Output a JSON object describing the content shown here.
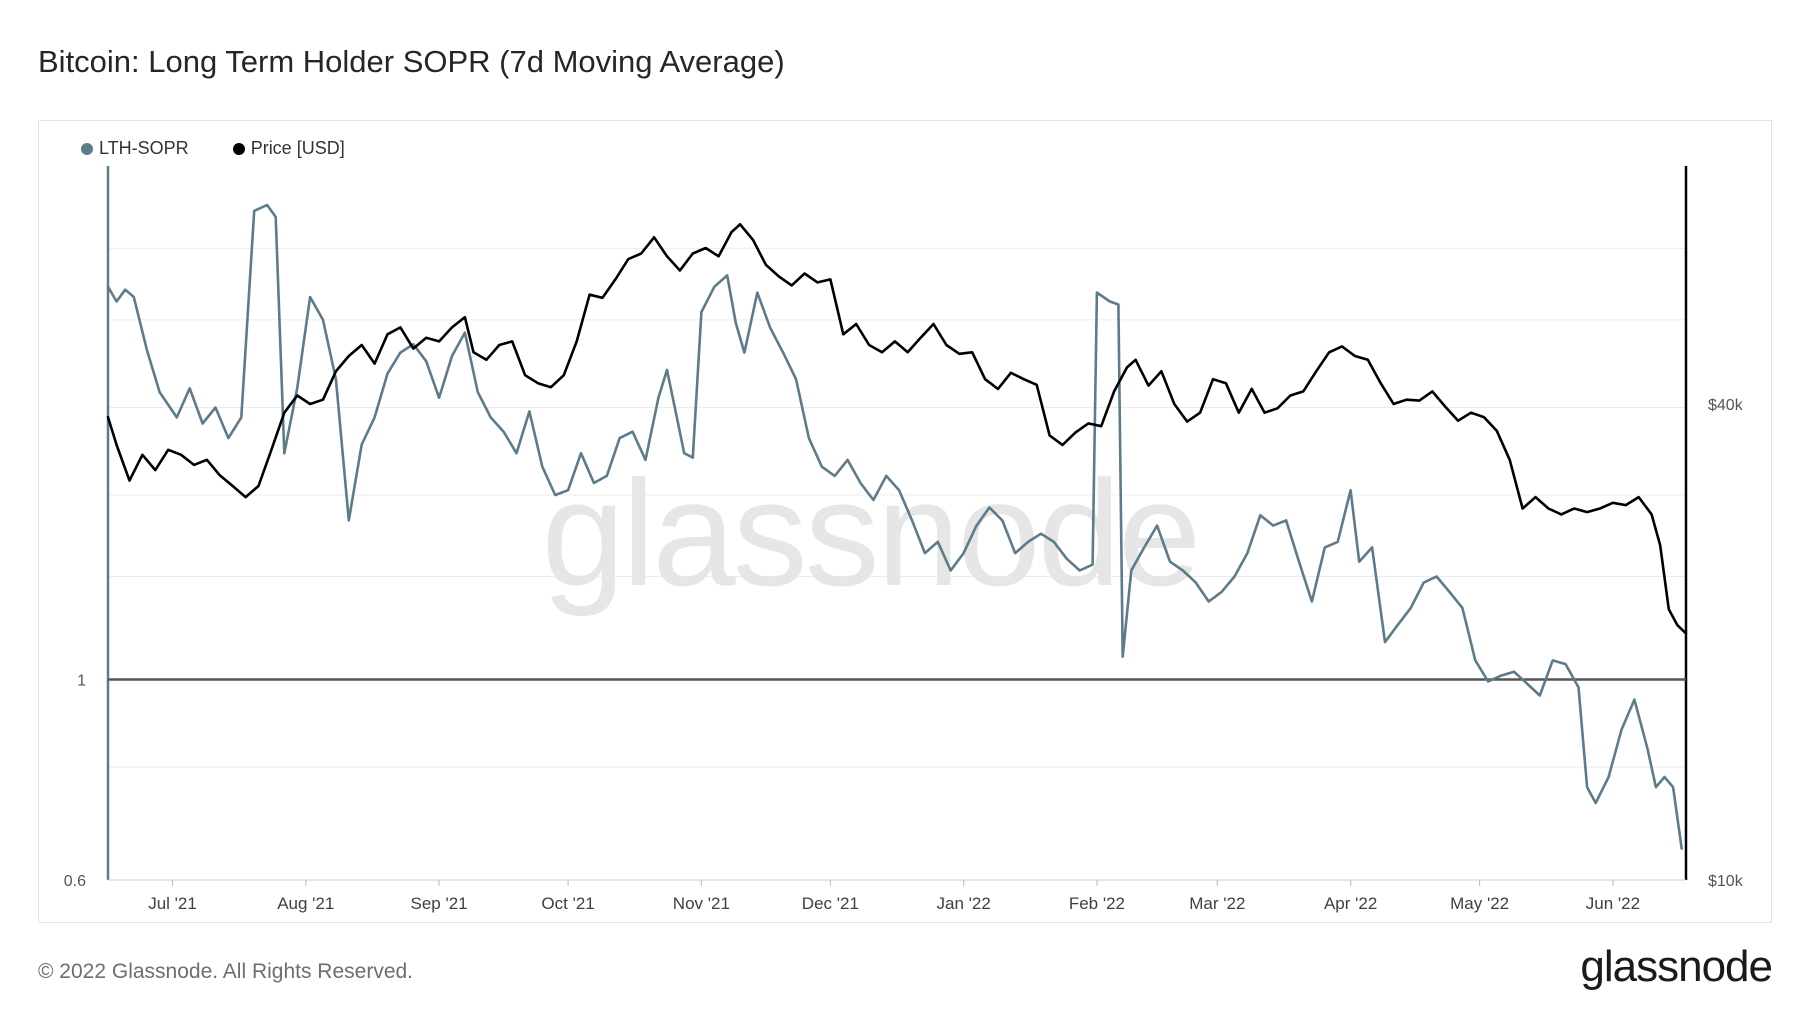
{
  "title": "Bitcoin: Long Term Holder SOPR (7d Moving Average)",
  "footer": "© 2022 Glassnode. All Rights Reserved.",
  "brand": "glassnode",
  "colors": {
    "sopr": "#5e7b8b",
    "price": "#000000",
    "baseline": "#555555",
    "grid": "#ececec"
  },
  "legend": [
    {
      "label": "LTH-SOPR",
      "color": "#5e7b8b"
    },
    {
      "label": "Price [USD]",
      "color": "#000000"
    }
  ],
  "chart_data": {
    "type": "line",
    "title": "Bitcoin: Long Term Holder SOPR (7d Moving Average)",
    "watermark": "glassnode",
    "x_range": [
      "2021-06-16",
      "2022-06-18"
    ],
    "x_ticks": [
      {
        "label": "Jul '21",
        "date": "2021-07-01"
      },
      {
        "label": "Aug '21",
        "date": "2021-08-01"
      },
      {
        "label": "Sep '21",
        "date": "2021-09-01"
      },
      {
        "label": "Oct '21",
        "date": "2021-10-01"
      },
      {
        "label": "Nov '21",
        "date": "2021-11-01"
      },
      {
        "label": "Dec '21",
        "date": "2021-12-01"
      },
      {
        "label": "Jan '22",
        "date": "2022-01-01"
      },
      {
        "label": "Feb '22",
        "date": "2022-02-01"
      },
      {
        "label": "Mar '22",
        "date": "2022-03-01"
      },
      {
        "label": "Apr '22",
        "date": "2022-04-01"
      },
      {
        "label": "May '22",
        "date": "2022-05-01"
      },
      {
        "label": "Jun '22",
        "date": "2022-06-01"
      }
    ],
    "y_left": {
      "scale": "log",
      "min": 0.6,
      "max": 3.7,
      "ticks": [
        {
          "label": "1",
          "value": 1
        },
        {
          "label": "0.6",
          "value": 0.6
        }
      ],
      "reference_line": 1
    },
    "y_right": {
      "scale": "log",
      "min": 10000,
      "max": 80000,
      "ticks": [
        {
          "label": "$40k",
          "value": 40000
        },
        {
          "label": "$10k",
          "value": 10000
        }
      ]
    },
    "series": [
      {
        "name": "LTH-SOPR",
        "axis": "left",
        "points": [
          [
            "2021-06-16",
            2.72
          ],
          [
            "2021-06-18",
            2.62
          ],
          [
            "2021-06-20",
            2.7
          ],
          [
            "2021-06-22",
            2.65
          ],
          [
            "2021-06-25",
            2.32
          ],
          [
            "2021-06-28",
            2.08
          ],
          [
            "2021-07-02",
            1.95
          ],
          [
            "2021-07-05",
            2.1
          ],
          [
            "2021-07-08",
            1.92
          ],
          [
            "2021-07-11",
            2.0
          ],
          [
            "2021-07-14",
            1.85
          ],
          [
            "2021-07-17",
            1.95
          ],
          [
            "2021-07-20",
            3.3
          ],
          [
            "2021-07-23",
            3.35
          ],
          [
            "2021-07-25",
            3.25
          ],
          [
            "2021-07-27",
            1.78
          ],
          [
            "2021-07-30",
            2.1
          ],
          [
            "2021-08-02",
            2.65
          ],
          [
            "2021-08-05",
            2.5
          ],
          [
            "2021-08-08",
            2.15
          ],
          [
            "2021-08-11",
            1.5
          ],
          [
            "2021-08-14",
            1.82
          ],
          [
            "2021-08-17",
            1.95
          ],
          [
            "2021-08-20",
            2.18
          ],
          [
            "2021-08-23",
            2.3
          ],
          [
            "2021-08-26",
            2.35
          ],
          [
            "2021-08-29",
            2.25
          ],
          [
            "2021-09-01",
            2.05
          ],
          [
            "2021-09-04",
            2.28
          ],
          [
            "2021-09-07",
            2.42
          ],
          [
            "2021-09-10",
            2.08
          ],
          [
            "2021-09-13",
            1.95
          ],
          [
            "2021-09-16",
            1.88
          ],
          [
            "2021-09-19",
            1.78
          ],
          [
            "2021-09-22",
            1.98
          ],
          [
            "2021-09-25",
            1.72
          ],
          [
            "2021-09-28",
            1.6
          ],
          [
            "2021-10-01",
            1.62
          ],
          [
            "2021-10-04",
            1.78
          ],
          [
            "2021-10-07",
            1.65
          ],
          [
            "2021-10-10",
            1.68
          ],
          [
            "2021-10-13",
            1.85
          ],
          [
            "2021-10-16",
            1.88
          ],
          [
            "2021-10-19",
            1.75
          ],
          [
            "2021-10-22",
            2.05
          ],
          [
            "2021-10-24",
            2.2
          ],
          [
            "2021-10-26",
            1.98
          ],
          [
            "2021-10-28",
            1.78
          ],
          [
            "2021-10-30",
            1.76
          ],
          [
            "2021-11-01",
            2.55
          ],
          [
            "2021-11-04",
            2.72
          ],
          [
            "2021-11-07",
            2.8
          ],
          [
            "2021-11-09",
            2.48
          ],
          [
            "2021-11-11",
            2.3
          ],
          [
            "2021-11-14",
            2.68
          ],
          [
            "2021-11-17",
            2.45
          ],
          [
            "2021-11-20",
            2.3
          ],
          [
            "2021-11-23",
            2.15
          ],
          [
            "2021-11-26",
            1.85
          ],
          [
            "2021-11-29",
            1.72
          ],
          [
            "2021-12-02",
            1.68
          ],
          [
            "2021-12-05",
            1.75
          ],
          [
            "2021-12-08",
            1.65
          ],
          [
            "2021-12-11",
            1.58
          ],
          [
            "2021-12-14",
            1.68
          ],
          [
            "2021-12-17",
            1.62
          ],
          [
            "2021-12-20",
            1.5
          ],
          [
            "2021-12-23",
            1.38
          ],
          [
            "2021-12-26",
            1.42
          ],
          [
            "2021-12-29",
            1.32
          ],
          [
            "2022-01-01",
            1.38
          ],
          [
            "2022-01-04",
            1.48
          ],
          [
            "2022-01-07",
            1.55
          ],
          [
            "2022-01-10",
            1.5
          ],
          [
            "2022-01-13",
            1.38
          ],
          [
            "2022-01-16",
            1.42
          ],
          [
            "2022-01-19",
            1.45
          ],
          [
            "2022-01-22",
            1.42
          ],
          [
            "2022-01-25",
            1.36
          ],
          [
            "2022-01-28",
            1.32
          ],
          [
            "2022-01-31",
            1.34
          ],
          [
            "2022-02-01",
            2.68
          ],
          [
            "2022-02-04",
            2.62
          ],
          [
            "2022-02-06",
            2.6
          ],
          [
            "2022-02-07",
            1.06
          ],
          [
            "2022-02-09",
            1.32
          ],
          [
            "2022-02-12",
            1.4
          ],
          [
            "2022-02-15",
            1.48
          ],
          [
            "2022-02-18",
            1.35
          ],
          [
            "2022-02-21",
            1.32
          ],
          [
            "2022-02-24",
            1.28
          ],
          [
            "2022-02-27",
            1.22
          ],
          [
            "2022-03-02",
            1.25
          ],
          [
            "2022-03-05",
            1.3
          ],
          [
            "2022-03-08",
            1.38
          ],
          [
            "2022-03-11",
            1.52
          ],
          [
            "2022-03-14",
            1.48
          ],
          [
            "2022-03-17",
            1.5
          ],
          [
            "2022-03-20",
            1.35
          ],
          [
            "2022-03-23",
            1.22
          ],
          [
            "2022-03-26",
            1.4
          ],
          [
            "2022-03-29",
            1.42
          ],
          [
            "2022-04-01",
            1.62
          ],
          [
            "2022-04-03",
            1.35
          ],
          [
            "2022-04-06",
            1.4
          ],
          [
            "2022-04-09",
            1.1
          ],
          [
            "2022-04-12",
            1.15
          ],
          [
            "2022-04-15",
            1.2
          ],
          [
            "2022-04-18",
            1.28
          ],
          [
            "2022-04-21",
            1.3
          ],
          [
            "2022-04-24",
            1.25
          ],
          [
            "2022-04-27",
            1.2
          ],
          [
            "2022-04-30",
            1.05
          ],
          [
            "2022-05-03",
            0.995
          ],
          [
            "2022-05-06",
            1.01
          ],
          [
            "2022-05-09",
            1.02
          ],
          [
            "2022-05-12",
            0.99
          ],
          [
            "2022-05-15",
            0.96
          ],
          [
            "2022-05-18",
            1.05
          ],
          [
            "2022-05-21",
            1.04
          ],
          [
            "2022-05-24",
            0.98
          ],
          [
            "2022-05-26",
            0.76
          ],
          [
            "2022-05-28",
            0.73
          ],
          [
            "2022-05-31",
            0.78
          ],
          [
            "2022-06-03",
            0.88
          ],
          [
            "2022-06-06",
            0.95
          ],
          [
            "2022-06-09",
            0.84
          ],
          [
            "2022-06-11",
            0.76
          ],
          [
            "2022-06-13",
            0.78
          ],
          [
            "2022-06-15",
            0.76
          ],
          [
            "2022-06-17",
            0.65
          ]
        ]
      },
      {
        "name": "Price [USD]",
        "axis": "right",
        "points": [
          [
            "2021-06-16",
            38500
          ],
          [
            "2021-06-18",
            35500
          ],
          [
            "2021-06-21",
            32000
          ],
          [
            "2021-06-24",
            34500
          ],
          [
            "2021-06-27",
            33000
          ],
          [
            "2021-06-30",
            35000
          ],
          [
            "2021-07-03",
            34500
          ],
          [
            "2021-07-06",
            33500
          ],
          [
            "2021-07-09",
            34000
          ],
          [
            "2021-07-12",
            32500
          ],
          [
            "2021-07-15",
            31500
          ],
          [
            "2021-07-18",
            30500
          ],
          [
            "2021-07-21",
            31500
          ],
          [
            "2021-07-24",
            35000
          ],
          [
            "2021-07-27",
            39000
          ],
          [
            "2021-07-30",
            41000
          ],
          [
            "2021-08-02",
            40000
          ],
          [
            "2021-08-05",
            40500
          ],
          [
            "2021-08-08",
            44000
          ],
          [
            "2021-08-11",
            46000
          ],
          [
            "2021-08-14",
            47500
          ],
          [
            "2021-08-17",
            45000
          ],
          [
            "2021-08-20",
            49000
          ],
          [
            "2021-08-23",
            50000
          ],
          [
            "2021-08-26",
            47000
          ],
          [
            "2021-08-29",
            48500
          ],
          [
            "2021-09-01",
            48000
          ],
          [
            "2021-09-04",
            50000
          ],
          [
            "2021-09-07",
            51500
          ],
          [
            "2021-09-09",
            46500
          ],
          [
            "2021-09-12",
            45500
          ],
          [
            "2021-09-15",
            47500
          ],
          [
            "2021-09-18",
            48000
          ],
          [
            "2021-09-21",
            43500
          ],
          [
            "2021-09-24",
            42500
          ],
          [
            "2021-09-27",
            42000
          ],
          [
            "2021-09-30",
            43500
          ],
          [
            "2021-10-03",
            48000
          ],
          [
            "2021-10-06",
            55000
          ],
          [
            "2021-10-09",
            54500
          ],
          [
            "2021-10-12",
            57500
          ],
          [
            "2021-10-15",
            61000
          ],
          [
            "2021-10-18",
            62000
          ],
          [
            "2021-10-21",
            65000
          ],
          [
            "2021-10-24",
            61500
          ],
          [
            "2021-10-27",
            59000
          ],
          [
            "2021-10-30",
            62000
          ],
          [
            "2021-11-02",
            63000
          ],
          [
            "2021-11-05",
            61500
          ],
          [
            "2021-11-08",
            66000
          ],
          [
            "2021-11-10",
            67500
          ],
          [
            "2021-11-13",
            64500
          ],
          [
            "2021-11-16",
            60000
          ],
          [
            "2021-11-19",
            58000
          ],
          [
            "2021-11-22",
            56500
          ],
          [
            "2021-11-25",
            58500
          ],
          [
            "2021-11-28",
            57000
          ],
          [
            "2021-12-01",
            57500
          ],
          [
            "2021-12-04",
            49000
          ],
          [
            "2021-12-07",
            50500
          ],
          [
            "2021-12-10",
            47500
          ],
          [
            "2021-12-13",
            46500
          ],
          [
            "2021-12-16",
            48000
          ],
          [
            "2021-12-19",
            46500
          ],
          [
            "2021-12-22",
            48500
          ],
          [
            "2021-12-25",
            50500
          ],
          [
            "2021-12-28",
            47500
          ],
          [
            "2021-12-31",
            46300
          ],
          [
            "2022-01-03",
            46500
          ],
          [
            "2022-01-06",
            43000
          ],
          [
            "2022-01-09",
            41800
          ],
          [
            "2022-01-12",
            43800
          ],
          [
            "2022-01-15",
            43000
          ],
          [
            "2022-01-18",
            42300
          ],
          [
            "2022-01-21",
            36500
          ],
          [
            "2022-01-24",
            35500
          ],
          [
            "2022-01-27",
            36800
          ],
          [
            "2022-01-30",
            37800
          ],
          [
            "2022-02-02",
            37500
          ],
          [
            "2022-02-05",
            41500
          ],
          [
            "2022-02-08",
            44500
          ],
          [
            "2022-02-10",
            45500
          ],
          [
            "2022-02-13",
            42200
          ],
          [
            "2022-02-16",
            44000
          ],
          [
            "2022-02-19",
            40000
          ],
          [
            "2022-02-22",
            38000
          ],
          [
            "2022-02-25",
            39000
          ],
          [
            "2022-02-28",
            43000
          ],
          [
            "2022-03-03",
            42500
          ],
          [
            "2022-03-06",
            39000
          ],
          [
            "2022-03-09",
            41800
          ],
          [
            "2022-03-12",
            39000
          ],
          [
            "2022-03-15",
            39500
          ],
          [
            "2022-03-18",
            41000
          ],
          [
            "2022-03-21",
            41500
          ],
          [
            "2022-03-24",
            44000
          ],
          [
            "2022-03-27",
            46500
          ],
          [
            "2022-03-30",
            47300
          ],
          [
            "2022-04-02",
            46000
          ],
          [
            "2022-04-05",
            45500
          ],
          [
            "2022-04-08",
            42500
          ],
          [
            "2022-04-11",
            40000
          ],
          [
            "2022-04-14",
            40500
          ],
          [
            "2022-04-17",
            40400
          ],
          [
            "2022-04-20",
            41500
          ],
          [
            "2022-04-23",
            39700
          ],
          [
            "2022-04-26",
            38100
          ],
          [
            "2022-04-29",
            39000
          ],
          [
            "2022-05-02",
            38500
          ],
          [
            "2022-05-05",
            37000
          ],
          [
            "2022-05-08",
            34000
          ],
          [
            "2022-05-11",
            29500
          ],
          [
            "2022-05-14",
            30500
          ],
          [
            "2022-05-17",
            29500
          ],
          [
            "2022-05-20",
            29000
          ],
          [
            "2022-05-23",
            29500
          ],
          [
            "2022-05-26",
            29200
          ],
          [
            "2022-05-29",
            29500
          ],
          [
            "2022-06-01",
            30000
          ],
          [
            "2022-06-04",
            29800
          ],
          [
            "2022-06-07",
            30500
          ],
          [
            "2022-06-10",
            29000
          ],
          [
            "2022-06-12",
            26500
          ],
          [
            "2022-06-14",
            22000
          ],
          [
            "2022-06-16",
            21000
          ],
          [
            "2022-06-18",
            20500
          ]
        ]
      }
    ]
  }
}
